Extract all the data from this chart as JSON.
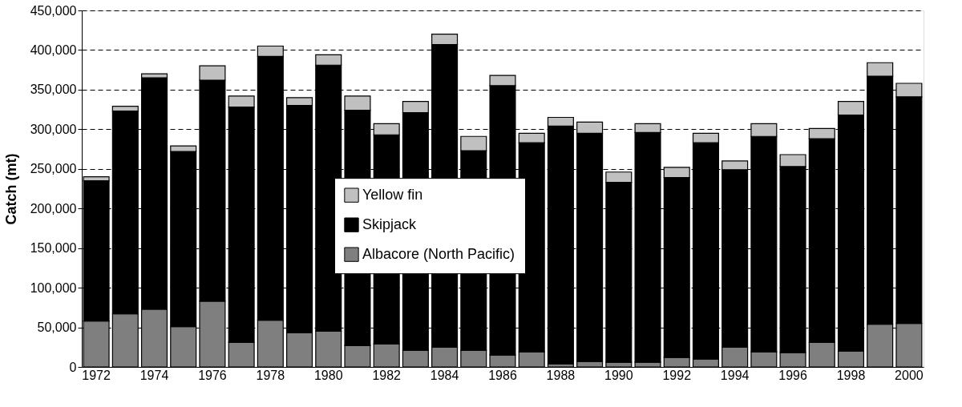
{
  "chart_data": {
    "type": "bar",
    "stacked": true,
    "ylabel": "Catch (mt)",
    "categories": [
      "1972",
      null,
      "1974",
      null,
      "1976",
      null,
      "1978",
      null,
      "1980",
      null,
      "1982",
      null,
      "1984",
      null,
      "1986",
      null,
      "1988",
      null,
      "1990",
      null,
      "1992",
      null,
      "1994",
      null,
      "1996",
      null,
      "1998",
      null,
      "2000"
    ],
    "series": [
      {
        "name": "Albacore (North Pacific)",
        "color": "#7f7f7f",
        "values": [
          58000,
          67000,
          73000,
          51000,
          83000,
          31000,
          59000,
          43000,
          45000,
          27000,
          29000,
          21000,
          25000,
          21000,
          15000,
          19000,
          4000,
          7000,
          6000,
          6000,
          12000,
          10000,
          25000,
          19000,
          18000,
          31000,
          20000,
          54000,
          55000
        ]
      },
      {
        "name": "Skipjack",
        "color": "#000000",
        "values": [
          177000,
          256000,
          292000,
          221000,
          279000,
          297000,
          333000,
          287000,
          336000,
          297000,
          264000,
          300000,
          382000,
          252000,
          340000,
          264000,
          300000,
          288000,
          227000,
          290000,
          227000,
          273000,
          224000,
          272000,
          235000,
          257000,
          298000,
          313000,
          286000
        ]
      },
      {
        "name": "Yellow fin",
        "color": "#c0c0c0",
        "values": [
          5000,
          6000,
          5000,
          7000,
          18000,
          14000,
          13000,
          10000,
          13000,
          18000,
          14000,
          14000,
          13000,
          18000,
          13000,
          12000,
          11000,
          14000,
          13000,
          11000,
          13000,
          12000,
          11000,
          16000,
          15000,
          13000,
          17000,
          17000,
          17000
        ]
      }
    ],
    "ylim": [
      0,
      450000
    ],
    "yticks": [
      0,
      {
        "value": 50000,
        "label": "50,000"
      },
      {
        "value": 100000,
        "label": "100,000"
      },
      {
        "value": 150000,
        "label": "150,000"
      },
      {
        "value": 200000,
        "label": "200,000"
      },
      {
        "value": 250000,
        "label": "250,000"
      },
      {
        "value": 300000,
        "label": "300,000"
      },
      {
        "value": 350000,
        "label": "350,000"
      },
      {
        "value": 400000,
        "label": "400,000"
      },
      {
        "value": 450000,
        "label": "450,000"
      }
    ],
    "grid": "y",
    "legend": "center"
  }
}
